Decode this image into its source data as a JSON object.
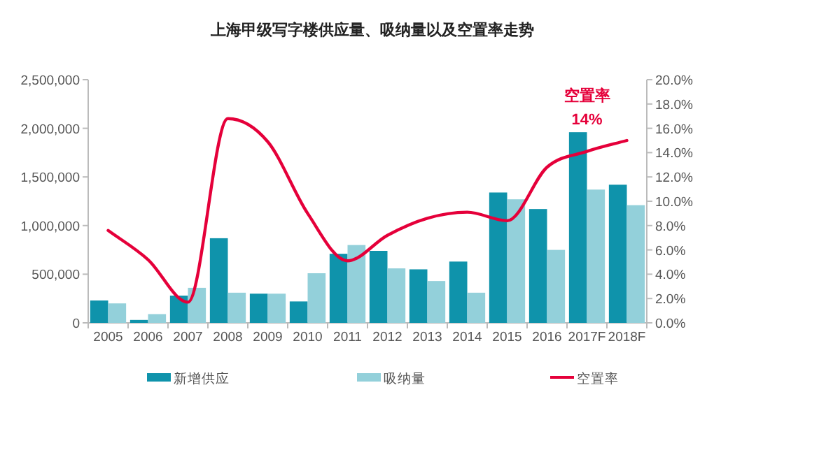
{
  "chart_data": {
    "type": "bar",
    "title": "上海甲级写字楼供应量、吸纳量以及空置率走势",
    "categories": [
      "2005",
      "2006",
      "2007",
      "2008",
      "2009",
      "2010",
      "2011",
      "2012",
      "2013",
      "2014",
      "2015",
      "2016",
      "2017F",
      "2018F"
    ],
    "series": [
      {
        "name": "新增供应",
        "color": "#0f93ab",
        "values": [
          230000,
          30000,
          280000,
          870000,
          300000,
          220000,
          710000,
          740000,
          550000,
          630000,
          1340000,
          1170000,
          1960000,
          1420000
        ]
      },
      {
        "name": "吸纳量",
        "color": "#93d0da",
        "values": [
          200000,
          90000,
          360000,
          310000,
          300000,
          510000,
          800000,
          560000,
          430000,
          310000,
          1270000,
          750000,
          1370000,
          1210000
        ]
      },
      {
        "name": "空置率",
        "type": "line",
        "axis": "y2",
        "color": "#e5003a",
        "values": [
          7.6,
          5.2,
          1.7,
          16.8,
          14.9,
          9.0,
          5.1,
          7.2,
          8.6,
          9.1,
          8.4,
          12.8,
          14.1,
          15.0
        ]
      }
    ],
    "ylim": [
      0,
      2500000
    ],
    "yticks": [
      0,
      {
        "value": 500000,
        "label": "500,000"
      },
      {
        "value": 1000000,
        "label": "1,000,000"
      },
      {
        "value": 1500000,
        "label": "1,500,000"
      },
      {
        "value": 2000000,
        "label": "2,000,000"
      },
      {
        "value": 2500000,
        "label": "2,500,000"
      }
    ],
    "y2lim": [
      0,
      20
    ],
    "y2ticks": [
      {
        "value": 0,
        "label": "0.0%"
      },
      {
        "value": 2,
        "label": "2.0%"
      },
      {
        "value": 4,
        "label": "4.0%"
      },
      {
        "value": 6,
        "label": "6.0%"
      },
      {
        "value": 8,
        "label": "8.0%"
      },
      {
        "value": 10,
        "label": "10.0%"
      },
      {
        "value": 12,
        "label": "12.0%"
      },
      {
        "value": 14,
        "label": "14.0%"
      },
      {
        "value": 16,
        "label": "16.0%"
      },
      {
        "value": 18,
        "label": "18.0%"
      },
      {
        "value": 20,
        "label": "20.0%"
      }
    ],
    "annotations": [
      "空置率",
      "14%"
    ],
    "grid": false,
    "legend": "bottom"
  }
}
